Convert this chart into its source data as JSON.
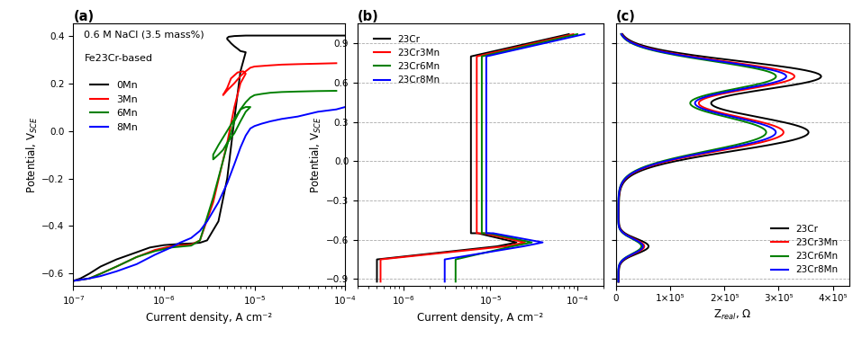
{
  "panel_a": {
    "title": "(a)",
    "xlabel": "Current density, A cm⁻²",
    "ylabel": "Potential, V$_{SCE}$",
    "annotation1": "0.6 M NaCl (3.5 mass%)",
    "annotation2": "Fe23Cr-based",
    "xlim": [
      1e-07,
      0.0001
    ],
    "ylim": [
      -0.65,
      0.45
    ],
    "yticks": [
      -0.6,
      -0.4,
      -0.2,
      0.0,
      0.2,
      0.4
    ],
    "legend_labels": [
      "0Mn",
      "3Mn",
      "6Mn",
      "8Mn"
    ],
    "colors": [
      "black",
      "red",
      "green",
      "blue"
    ]
  },
  "panel_b": {
    "title": "(b)",
    "xlabel": "Current density, A cm⁻²",
    "ylabel": "Potential, V$_{SCE}$",
    "xlim": [
      3e-07,
      0.0002
    ],
    "ylim": [
      -0.95,
      1.05
    ],
    "yticks": [
      -0.9,
      -0.6,
      -0.3,
      0.0,
      0.3,
      0.6,
      0.9
    ],
    "legend_labels": [
      "23Cr",
      "23Cr3Mn",
      "23Cr6Mn",
      "23Cr8Mn"
    ],
    "colors": [
      "black",
      "red",
      "green",
      "blue"
    ],
    "grid": true
  },
  "panel_c": {
    "title": "(c)",
    "xlabel": "Z$_{real}$, Ω",
    "xlim": [
      0,
      430000.0
    ],
    "ylim": [
      -0.95,
      1.05
    ],
    "yticks": [
      -0.9,
      -0.6,
      -0.3,
      0.0,
      0.3,
      0.6,
      0.9
    ],
    "xticks": [
      0,
      100000.0,
      200000.0,
      300000.0,
      400000.0
    ],
    "xtick_labels": [
      "0",
      "1×10⁵",
      "2×10⁵",
      "3×10⁵",
      "4×10⁵"
    ],
    "legend_labels": [
      "23Cr",
      "23Cr3Mn",
      "23Cr6Mn",
      "23Cr8Mn"
    ],
    "colors": [
      "black",
      "red",
      "green",
      "blue"
    ],
    "grid": true
  }
}
